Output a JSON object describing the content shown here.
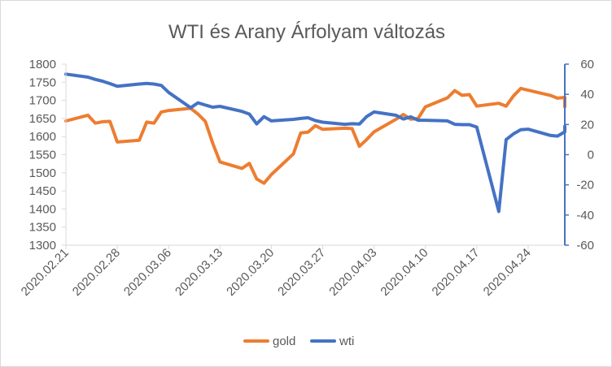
{
  "chart_data": {
    "type": "line",
    "title": "WTI és Arany Árfolyam változás",
    "x_tick_labels": [
      "2020.02.21",
      "2020.02.28",
      "2020.03.06",
      "2020.03.13",
      "2020.03.20",
      "2020.03.27",
      "2020.04.03",
      "2020.04.10",
      "2020.04.17",
      "2020.04.24"
    ],
    "x_range": [
      "2020.02.21",
      "2020.04.29"
    ],
    "y_left": {
      "range": [
        1300,
        1800
      ],
      "ticks": [
        1300,
        1350,
        1400,
        1450,
        1500,
        1550,
        1600,
        1650,
        1700,
        1750,
        1800
      ]
    },
    "y_right": {
      "range": [
        -60,
        60
      ],
      "ticks": [
        -60,
        -40,
        -20,
        0,
        20,
        40,
        60
      ]
    },
    "grid": "none",
    "legend_position": "bottom",
    "series": [
      {
        "name": "gold",
        "axis": "left",
        "color": "#ED7D31",
        "points": [
          [
            "2020.02.21",
            1643
          ],
          [
            "2020.02.24",
            1659
          ],
          [
            "2020.02.25",
            1637
          ],
          [
            "2020.02.26",
            1641
          ],
          [
            "2020.02.27",
            1642
          ],
          [
            "2020.02.28",
            1585
          ],
          [
            "2020.03.02",
            1590
          ],
          [
            "2020.03.03",
            1640
          ],
          [
            "2020.03.04",
            1637
          ],
          [
            "2020.03.05",
            1668
          ],
          [
            "2020.03.06",
            1672
          ],
          [
            "2020.03.09",
            1678
          ],
          [
            "2020.03.10",
            1662
          ],
          [
            "2020.03.11",
            1642
          ],
          [
            "2020.03.12",
            1582
          ],
          [
            "2020.03.13",
            1530
          ],
          [
            "2020.03.16",
            1512
          ],
          [
            "2020.03.17",
            1526
          ],
          [
            "2020.03.18",
            1483
          ],
          [
            "2020.03.19",
            1471
          ],
          [
            "2020.03.20",
            1495
          ],
          [
            "2020.03.23",
            1552
          ],
          [
            "2020.03.24",
            1610
          ],
          [
            "2020.03.25",
            1612
          ],
          [
            "2020.03.26",
            1630
          ],
          [
            "2020.03.27",
            1620
          ],
          [
            "2020.03.30",
            1623
          ],
          [
            "2020.03.31",
            1622
          ],
          [
            "2020.04.01",
            1573
          ],
          [
            "2020.04.02",
            1592
          ],
          [
            "2020.04.03",
            1613
          ],
          [
            "2020.04.06",
            1648
          ],
          [
            "2020.04.07",
            1661
          ],
          [
            "2020.04.08",
            1648
          ],
          [
            "2020.04.09",
            1650
          ],
          [
            "2020.04.10",
            1682
          ],
          [
            "2020.04.13",
            1707
          ],
          [
            "2020.04.14",
            1727
          ],
          [
            "2020.04.15",
            1714
          ],
          [
            "2020.04.16",
            1716
          ],
          [
            "2020.04.17",
            1684
          ],
          [
            "2020.04.20",
            1692
          ],
          [
            "2020.04.21",
            1684
          ],
          [
            "2020.04.22",
            1712
          ],
          [
            "2020.04.23",
            1733
          ],
          [
            "2020.04.27",
            1714
          ],
          [
            "2020.04.28",
            1706
          ],
          [
            "2020.04.29",
            1708
          ],
          [
            "2020.04.30",
            1683
          ]
        ]
      },
      {
        "name": "wti",
        "axis": "right",
        "color": "#4472C4",
        "points": [
          [
            "2020.02.21",
            53.4
          ],
          [
            "2020.02.24",
            51.4
          ],
          [
            "2020.02.25",
            49.9
          ],
          [
            "2020.02.26",
            48.7
          ],
          [
            "2020.02.27",
            47.1
          ],
          [
            "2020.02.28",
            45.3
          ],
          [
            "2020.03.02",
            46.8
          ],
          [
            "2020.03.03",
            47.2
          ],
          [
            "2020.03.04",
            46.8
          ],
          [
            "2020.03.05",
            45.9
          ],
          [
            "2020.03.06",
            41.3
          ],
          [
            "2020.03.09",
            31.1
          ],
          [
            "2020.03.10",
            34.4
          ],
          [
            "2020.03.11",
            32.9
          ],
          [
            "2020.03.12",
            31.5
          ],
          [
            "2020.03.13",
            32.0
          ],
          [
            "2020.03.16",
            28.7
          ],
          [
            "2020.03.17",
            26.9
          ],
          [
            "2020.03.18",
            20.4
          ],
          [
            "2020.03.19",
            25.2
          ],
          [
            "2020.03.20",
            22.4
          ],
          [
            "2020.03.23",
            23.4
          ],
          [
            "2020.03.24",
            24.0
          ],
          [
            "2020.03.25",
            24.5
          ],
          [
            "2020.03.26",
            22.6
          ],
          [
            "2020.03.27",
            21.5
          ],
          [
            "2020.03.30",
            20.1
          ],
          [
            "2020.03.31",
            20.5
          ],
          [
            "2020.04.01",
            20.3
          ],
          [
            "2020.04.02",
            25.3
          ],
          [
            "2020.04.03",
            28.3
          ],
          [
            "2020.04.06",
            26.1
          ],
          [
            "2020.04.07",
            23.6
          ],
          [
            "2020.04.08",
            25.1
          ],
          [
            "2020.04.09",
            22.8
          ],
          [
            "2020.04.10",
            22.8
          ],
          [
            "2020.04.13",
            22.4
          ],
          [
            "2020.04.14",
            20.1
          ],
          [
            "2020.04.15",
            19.9
          ],
          [
            "2020.04.16",
            19.9
          ],
          [
            "2020.04.17",
            18.3
          ],
          [
            "2020.04.20",
            -37.6
          ],
          [
            "2020.04.21",
            10.0
          ],
          [
            "2020.04.22",
            13.8
          ],
          [
            "2020.04.23",
            16.5
          ],
          [
            "2020.04.24",
            16.9
          ],
          [
            "2020.04.27",
            12.8
          ],
          [
            "2020.04.28",
            12.3
          ],
          [
            "2020.04.29",
            15.1
          ],
          [
            "2020.04.30",
            18.8
          ]
        ]
      }
    ]
  }
}
